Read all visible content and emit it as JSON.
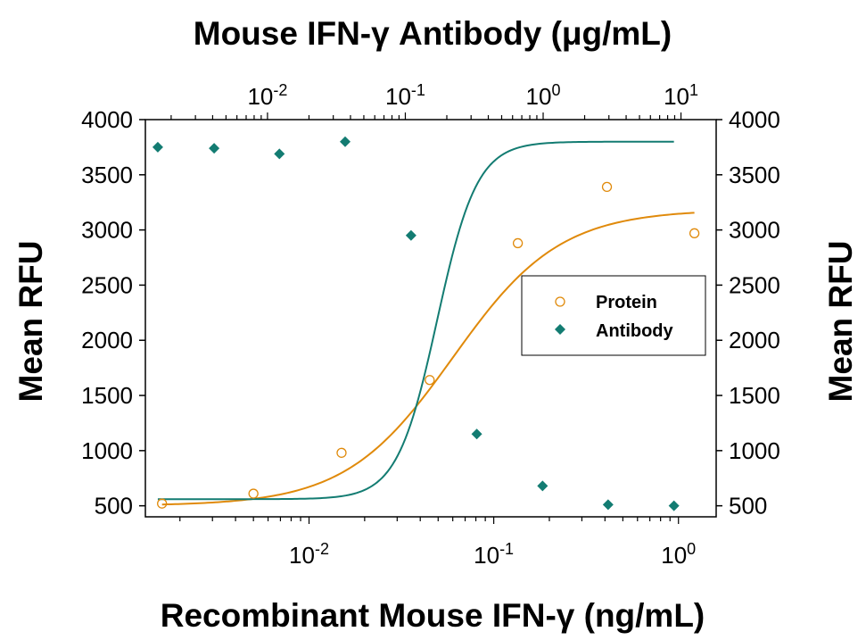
{
  "chart_data": {
    "type": "scatter",
    "title": "Mouse IFN-γ Antibody (μg/mL)",
    "xlabel": "Recombinant Mouse IFN-γ (ng/mL)",
    "ylabel": "Mean RFU",
    "ylabel_right": "Mean RFU",
    "x_scale": "log",
    "xlim": [
      0.0013,
      1.6
    ],
    "x_ticks": [
      {
        "value": 0.01,
        "base": "10",
        "exp": "-2"
      },
      {
        "value": 0.1,
        "base": "10",
        "exp": "-1"
      },
      {
        "value": 1,
        "base": "10",
        "exp": "0"
      }
    ],
    "x_top_scale": "log",
    "x_top_lim": [
      0.0013,
      18
    ],
    "x_top_ticks": [
      {
        "value": 0.01,
        "base": "10",
        "exp": "-2"
      },
      {
        "value": 0.1,
        "base": "10",
        "exp": "-1"
      },
      {
        "value": 1,
        "base": "10",
        "exp": "0"
      },
      {
        "value": 10,
        "base": "10",
        "exp": "1"
      }
    ],
    "ylim": [
      400,
      4000
    ],
    "y_ticks": [
      "500",
      "1000",
      "1500",
      "2000",
      "2500",
      "3000",
      "3500",
      "4000"
    ],
    "grid": false,
    "legend": "right",
    "series": [
      {
        "name": "Protein",
        "marker": "open-circle",
        "color": "#E08A0B",
        "axis": "bottom",
        "x": [
          0.0016,
          0.005,
          0.015,
          0.045,
          0.135,
          0.41,
          1.22
        ],
        "y": [
          520,
          610,
          980,
          1640,
          2880,
          3390,
          2970
        ],
        "fit": {
          "bottom": 500,
          "top": 3185,
          "ec50": 0.06,
          "hill": 1.5
        }
      },
      {
        "name": "Antibody",
        "marker": "filled-diamond",
        "color": "#137C72",
        "axis": "top",
        "x": [
          0.0016,
          0.0041,
          0.0122,
          0.0366,
          0.11,
          0.33,
          0.99,
          2.96,
          8.89
        ],
        "y": [
          3750,
          3740,
          3690,
          3800,
          2950,
          1150,
          680,
          510,
          500
        ],
        "fit": {
          "bottom": 560,
          "top": 3800,
          "ec50": 0.17,
          "hill": 3.0
        }
      }
    ]
  }
}
